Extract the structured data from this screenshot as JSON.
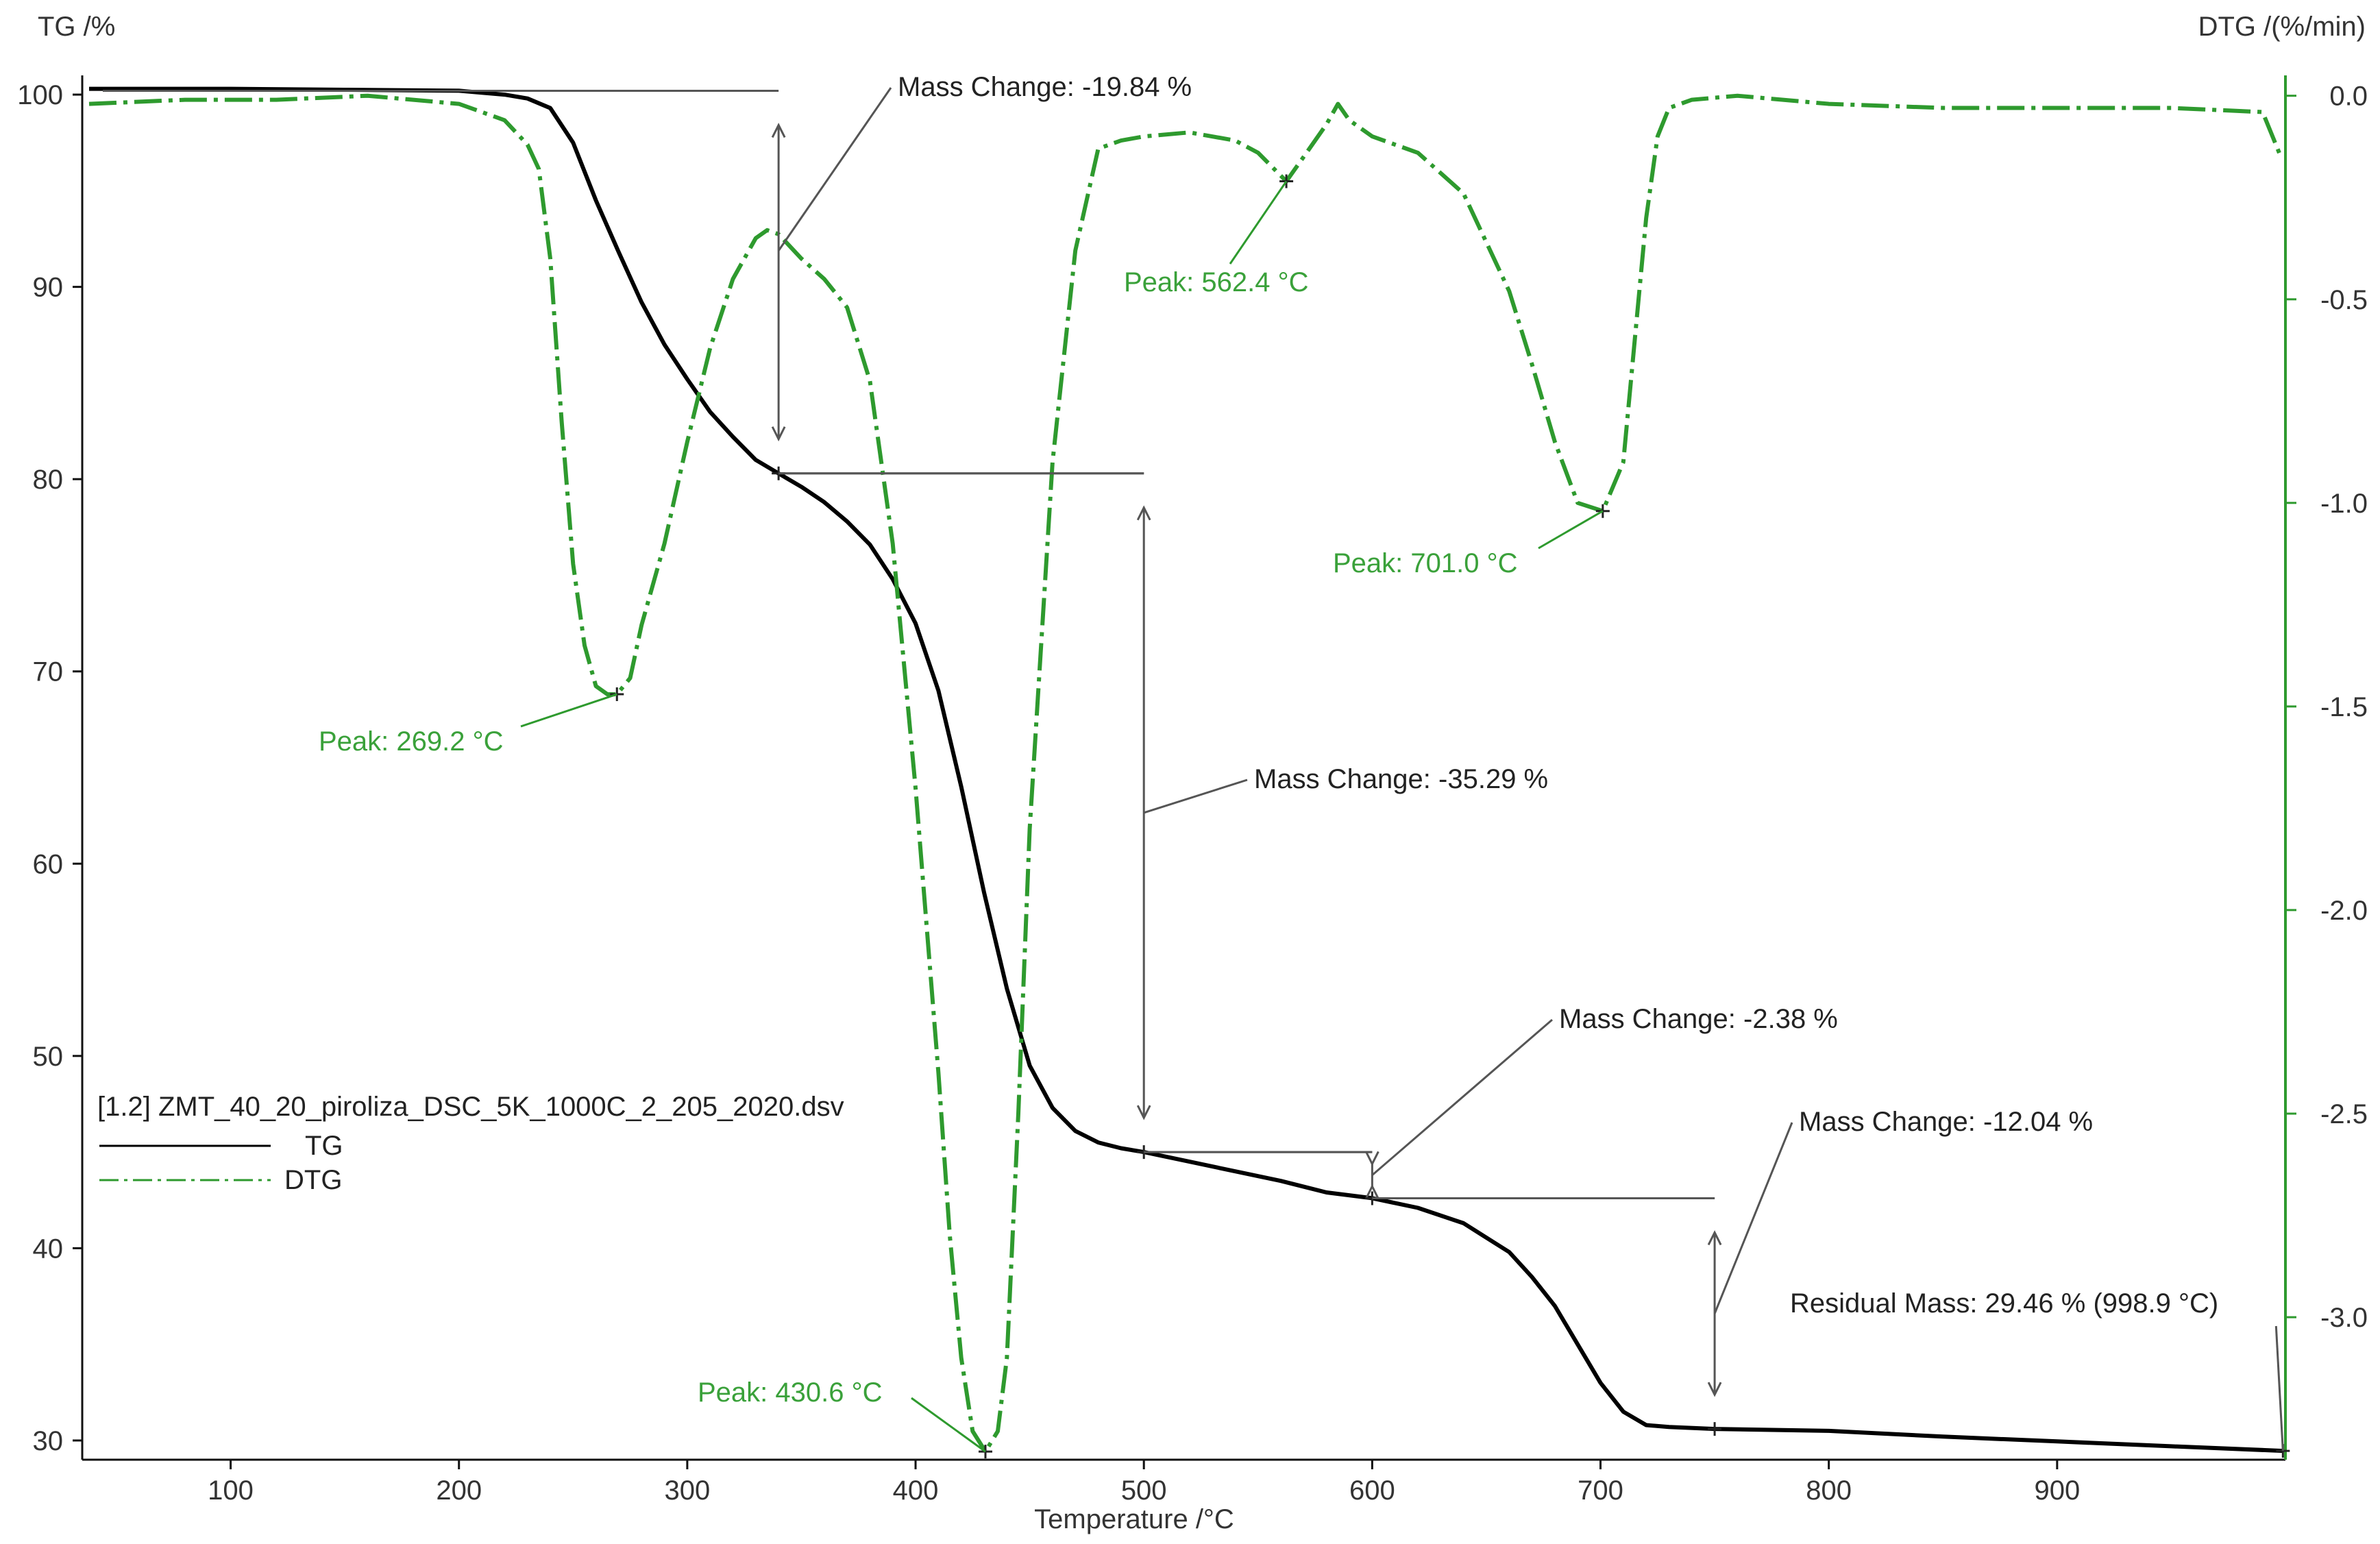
{
  "chart_data": {
    "type": "line",
    "title": "",
    "xlabel": "Temperature /°C",
    "ylabel": "TG /%",
    "y2label": "DTG /(%/min)",
    "xlim": [
      35,
      1000
    ],
    "ylim": [
      29,
      101
    ],
    "y2lim": [
      -3.35,
      0.05
    ],
    "xticks": [
      100,
      200,
      300,
      400,
      500,
      600,
      700,
      800,
      900
    ],
    "yticks": [
      30,
      40,
      50,
      60,
      70,
      80,
      90,
      100
    ],
    "y2ticks": [
      "0.0",
      "-0.5",
      "-1.0",
      "-1.5",
      "-2.0",
      "-2.5",
      "-3.0"
    ],
    "y2tick_values": [
      0.0,
      -0.5,
      -1.0,
      -1.5,
      -2.0,
      -2.5,
      -3.0
    ],
    "grid": false,
    "legend_position": "lower-left",
    "legend_file": "[1.2] ZMT_40_20_piroliza_DSC_5K_1000C_2_205_2020.dsv",
    "colors": {
      "tg": "#000000",
      "dtg": "#2e9a2e",
      "annotation": "#555555",
      "axis_right": "#2e9a2e"
    },
    "series": [
      {
        "name": "TG",
        "axis": "left",
        "style": "solid",
        "x": [
          38,
          100,
          150,
          200,
          220,
          230,
          240,
          250,
          260,
          270,
          280,
          290,
          300,
          310,
          320,
          330,
          340,
          350,
          360,
          370,
          380,
          390,
          400,
          410,
          420,
          430,
          440,
          450,
          460,
          470,
          480,
          490,
          500,
          520,
          540,
          560,
          580,
          600,
          620,
          640,
          660,
          670,
          680,
          690,
          700,
          710,
          720,
          730,
          750,
          800,
          850,
          900,
          950,
          998.9
        ],
        "y": [
          100.3,
          100.3,
          100.25,
          100.2,
          100.0,
          99.8,
          99.3,
          97.5,
          94.5,
          91.8,
          89.2,
          87.0,
          85.2,
          83.5,
          82.2,
          81.0,
          80.3,
          79.6,
          78.8,
          77.8,
          76.6,
          74.8,
          72.5,
          69.0,
          64.0,
          58.5,
          53.5,
          49.5,
          47.3,
          46.1,
          45.5,
          45.2,
          45.0,
          44.5,
          44.0,
          43.5,
          42.9,
          42.6,
          42.1,
          41.3,
          39.8,
          38.5,
          37.0,
          35.0,
          33.0,
          31.5,
          30.8,
          30.7,
          30.6,
          30.5,
          30.2,
          29.95,
          29.7,
          29.46
        ]
      },
      {
        "name": "DTG",
        "axis": "right",
        "style": "dash-dot",
        "x": [
          38,
          80,
          120,
          160,
          200,
          220,
          230,
          235,
          240,
          245,
          250,
          255,
          260,
          265,
          269.2,
          275,
          280,
          290,
          300,
          310,
          320,
          330,
          335,
          340,
          350,
          360,
          370,
          380,
          390,
          400,
          410,
          415,
          420,
          425,
          430.6,
          436,
          440,
          445,
          450,
          460,
          470,
          480,
          490,
          500,
          520,
          540,
          550,
          562.4,
          570,
          580,
          585,
          590,
          600,
          620,
          640,
          660,
          670,
          680,
          690,
          701,
          710,
          715,
          720,
          725,
          730,
          740,
          760,
          800,
          850,
          900,
          950,
          990,
          998
        ],
        "y": [
          -0.02,
          -0.01,
          -0.01,
          0.0,
          -0.02,
          -0.06,
          -0.12,
          -0.18,
          -0.4,
          -0.8,
          -1.15,
          -1.35,
          -1.45,
          -1.47,
          -1.47,
          -1.43,
          -1.3,
          -1.1,
          -0.85,
          -0.62,
          -0.45,
          -0.35,
          -0.33,
          -0.34,
          -0.4,
          -0.45,
          -0.52,
          -0.7,
          -1.1,
          -1.7,
          -2.4,
          -2.8,
          -3.1,
          -3.28,
          -3.33,
          -3.28,
          -3.1,
          -2.5,
          -1.8,
          -0.9,
          -0.38,
          -0.13,
          -0.11,
          -0.1,
          -0.09,
          -0.11,
          -0.14,
          -0.21,
          -0.15,
          -0.07,
          -0.02,
          -0.06,
          -0.1,
          -0.14,
          -0.24,
          -0.48,
          -0.66,
          -0.85,
          -1.0,
          -1.02,
          -0.9,
          -0.6,
          -0.3,
          -0.1,
          -0.03,
          -0.01,
          0.0,
          -0.02,
          -0.03,
          -0.03,
          -0.03,
          -0.04,
          -0.15
        ]
      }
    ],
    "annotations": {
      "mass_changes": [
        {
          "label": "Mass Change: -19.84 %",
          "x_from": 38,
          "x_to": 340,
          "y_top": 100.2,
          "y_bottom": 80.3
        },
        {
          "label": "Mass Change: -35.29 %",
          "x_from": 340,
          "x_to": 500,
          "y_top": 80.3,
          "y_bottom": 45.0
        },
        {
          "label": "Mass Change: -2.38 %",
          "x_from": 500,
          "x_to": 600,
          "y_top": 45.0,
          "y_bottom": 42.6
        },
        {
          "label": "Mass Change: -12.04 %",
          "x_from": 600,
          "x_to": 750,
          "y_top": 42.6,
          "y_bottom": 30.6
        }
      ],
      "peaks": [
        {
          "label": "Peak: 269.2 °C",
          "x": 269.2,
          "y": -1.47
        },
        {
          "label": "Peak: 430.6 °C",
          "x": 430.6,
          "y": -3.33
        },
        {
          "label": "Peak: 562.4 °C",
          "x": 562.4,
          "y": -0.21
        },
        {
          "label": "Peak: 701.0 °C",
          "x": 701.0,
          "y": -1.02
        }
      ],
      "residual": {
        "label": "Residual Mass: 29.46 % (998.9 °C)",
        "x": 998.9,
        "y": 29.46
      }
    }
  }
}
